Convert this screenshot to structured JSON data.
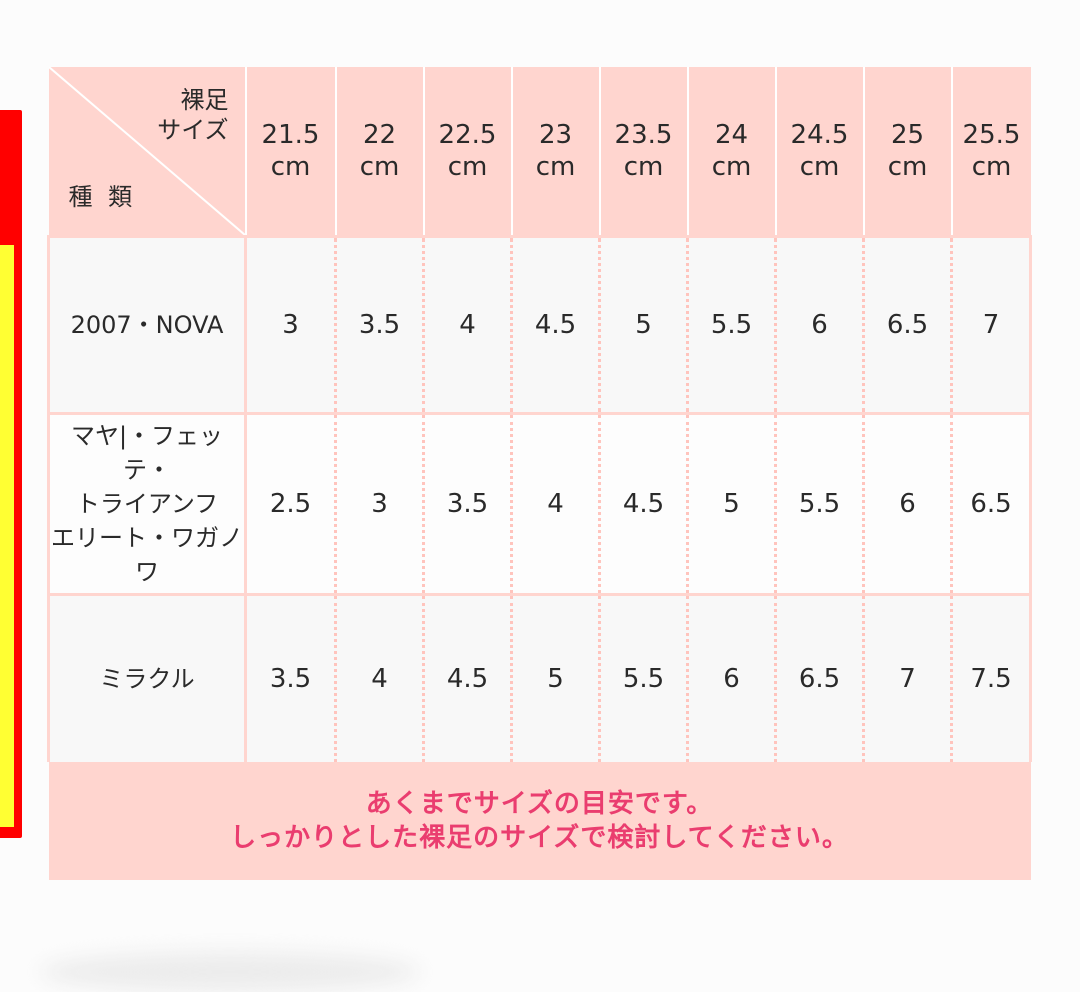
{
  "colors": {
    "header_bg": "#ffd5cf",
    "note_text": "#ea3d6f",
    "left_panel_red": "#ff0000",
    "left_panel_yellow": "#ffff33"
  },
  "table": {
    "corner": {
      "barefoot_size": "裸足\nサイズ",
      "type": "種 類"
    },
    "columns": [
      {
        "value": "21.5",
        "unit": "cm"
      },
      {
        "value": "22",
        "unit": "cm"
      },
      {
        "value": "22.5",
        "unit": "cm"
      },
      {
        "value": "23",
        "unit": "cm"
      },
      {
        "value": "23.5",
        "unit": "cm"
      },
      {
        "value": "24",
        "unit": "cm"
      },
      {
        "value": "24.5",
        "unit": "cm"
      },
      {
        "value": "25",
        "unit": "cm"
      },
      {
        "value": "25.5",
        "unit": "cm"
      }
    ],
    "rows": [
      {
        "name_lines": [
          "2007・NOVA"
        ],
        "values": [
          "3",
          "3.5",
          "4",
          "4.5",
          "5",
          "5.5",
          "6",
          "6.5",
          "7"
        ]
      },
      {
        "name_lines": [
          "マヤ|・フェッテ・",
          "トライアンフ",
          "エリート・ワガノワ"
        ],
        "values": [
          "2.5",
          "3",
          "3.5",
          "4",
          "4.5",
          "5",
          "5.5",
          "6",
          "6.5"
        ]
      },
      {
        "name_lines": [
          "ミラクル"
        ],
        "values": [
          "3.5",
          "4",
          "4.5",
          "5",
          "5.5",
          "6",
          "6.5",
          "7",
          "7.5"
        ]
      }
    ],
    "note_lines": [
      "あくまでサイズの目安です。",
      "しっかりとした裸足のサイズで検討してください。"
    ]
  }
}
